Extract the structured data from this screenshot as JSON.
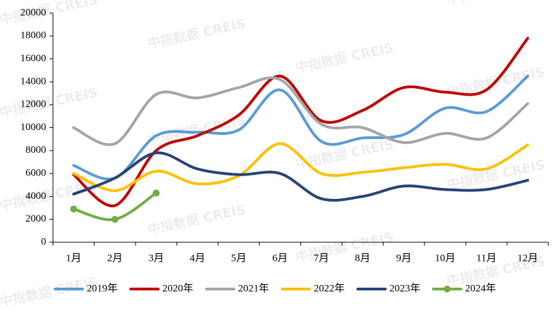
{
  "chart_data": {
    "type": "line",
    "watermark": "中指数据 CREIS",
    "categories": [
      "1月",
      "2月",
      "3月",
      "4月",
      "5月",
      "6月",
      "7月",
      "8月",
      "9月",
      "10月",
      "11月",
      "12月"
    ],
    "series": [
      {
        "name": "2019年",
        "color": "#5b9bd5",
        "values": [
          6700,
          5600,
          9300,
          9600,
          9800,
          13300,
          8800,
          9100,
          9400,
          11700,
          11400,
          14500
        ]
      },
      {
        "name": "2020年",
        "color": "#c00000",
        "values": [
          5900,
          3200,
          8000,
          9300,
          11100,
          14500,
          10600,
          11500,
          13500,
          13100,
          13300,
          17800
        ]
      },
      {
        "name": "2021年",
        "color": "#a5a5a5",
        "values": [
          10000,
          8600,
          12900,
          12600,
          13500,
          14200,
          10300,
          10000,
          8700,
          9500,
          9100,
          12100
        ]
      },
      {
        "name": "2022年",
        "color": "#ffc000",
        "values": [
          6000,
          4500,
          6200,
          5100,
          5800,
          8600,
          6000,
          6100,
          6500,
          6800,
          6400,
          8500
        ]
      },
      {
        "name": "2023年",
        "color": "#264478",
        "values": [
          4200,
          5600,
          7800,
          6400,
          5900,
          6000,
          3800,
          4000,
          4900,
          4600,
          4600,
          5400
        ]
      },
      {
        "name": "2024年",
        "color": "#70ad47",
        "values": [
          2900,
          2000,
          4300,
          null,
          null,
          null,
          null,
          null,
          null,
          null,
          null,
          null
        ],
        "markers": true
      }
    ],
    "ylim": [
      0,
      20000
    ],
    "yticks": [
      0,
      2000,
      4000,
      6000,
      8000,
      10000,
      12000,
      14000,
      16000,
      18000,
      20000
    ],
    "legend": "bottom"
  }
}
